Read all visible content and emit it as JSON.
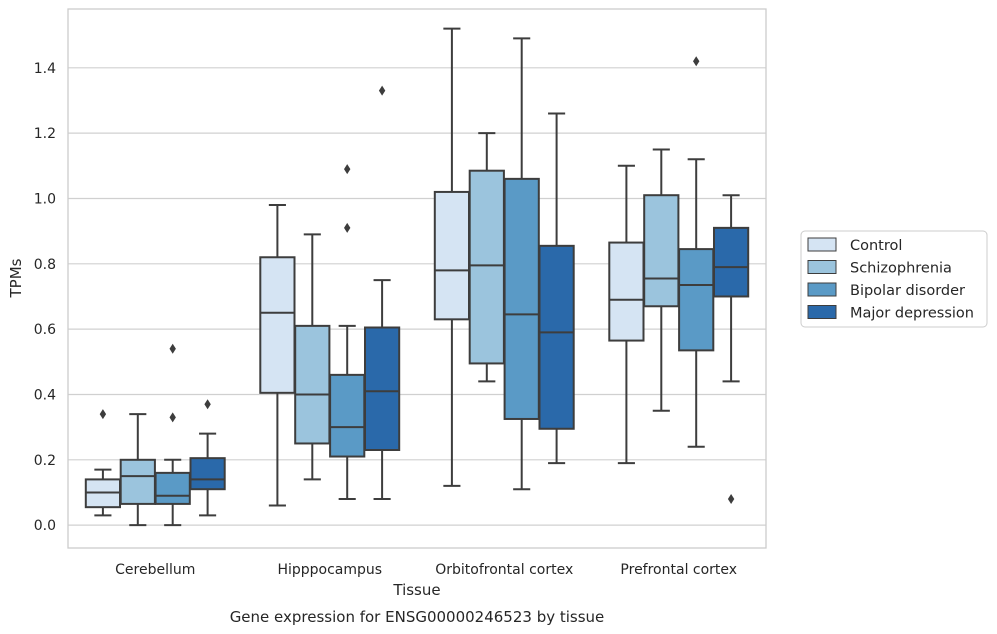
{
  "chart_data": {
    "type": "boxplot",
    "xlabel": "Tissue",
    "ylabel": "TPMs",
    "caption": "Gene expression for ENSG00000246523 by tissue",
    "ylim": [
      -0.07,
      1.58
    ],
    "yticks": [
      "0.0",
      "0.2",
      "0.4",
      "0.6",
      "0.8",
      "1.0",
      "1.2",
      "1.4"
    ],
    "ytick_values": [
      0.0,
      0.2,
      0.4,
      0.6,
      0.8,
      1.0,
      1.2,
      1.4
    ],
    "grid": "horizontal",
    "legend_position": "right",
    "categories": [
      "Cerebellum",
      "Hipppocampus",
      "Orbitofrontal cortex",
      "Prefrontal cortex"
    ],
    "series": [
      {
        "name": "Control",
        "color": "#d5e4f3",
        "boxes": [
          {
            "whislo": 0.03,
            "q1": 0.055,
            "med": 0.1,
            "q3": 0.14,
            "whishi": 0.17,
            "fliers": [
              0.34
            ]
          },
          {
            "whislo": 0.06,
            "q1": 0.405,
            "med": 0.65,
            "q3": 0.82,
            "whishi": 0.98,
            "fliers": []
          },
          {
            "whislo": 0.12,
            "q1": 0.63,
            "med": 0.78,
            "q3": 1.02,
            "whishi": 1.52,
            "fliers": []
          },
          {
            "whislo": 0.19,
            "q1": 0.565,
            "med": 0.69,
            "q3": 0.865,
            "whishi": 1.1,
            "fliers": []
          }
        ]
      },
      {
        "name": "Schizophrenia",
        "color": "#9bc4dd",
        "boxes": [
          {
            "whislo": 0.0,
            "q1": 0.065,
            "med": 0.15,
            "q3": 0.2,
            "whishi": 0.34,
            "fliers": []
          },
          {
            "whislo": 0.14,
            "q1": 0.25,
            "med": 0.4,
            "q3": 0.61,
            "whishi": 0.89,
            "fliers": []
          },
          {
            "whislo": 0.44,
            "q1": 0.495,
            "med": 0.795,
            "q3": 1.085,
            "whishi": 1.2,
            "fliers": []
          },
          {
            "whislo": 0.35,
            "q1": 0.67,
            "med": 0.755,
            "q3": 1.01,
            "whishi": 1.15,
            "fliers": []
          }
        ]
      },
      {
        "name": "Bipolar disorder",
        "color": "#5a9ac6",
        "boxes": [
          {
            "whislo": 0.0,
            "q1": 0.065,
            "med": 0.09,
            "q3": 0.16,
            "whishi": 0.2,
            "fliers": [
              0.33,
              0.54
            ]
          },
          {
            "whislo": 0.08,
            "q1": 0.21,
            "med": 0.3,
            "q3": 0.46,
            "whishi": 0.61,
            "fliers": [
              0.91,
              1.09
            ]
          },
          {
            "whislo": 0.11,
            "q1": 0.325,
            "med": 0.645,
            "q3": 1.06,
            "whishi": 1.49,
            "fliers": []
          },
          {
            "whislo": 0.24,
            "q1": 0.535,
            "med": 0.735,
            "q3": 0.845,
            "whishi": 1.12,
            "fliers": [
              1.42
            ]
          }
        ]
      },
      {
        "name": "Major depression",
        "color": "#2a69aa",
        "boxes": [
          {
            "whislo": 0.03,
            "q1": 0.11,
            "med": 0.14,
            "q3": 0.205,
            "whishi": 0.28,
            "fliers": [
              0.37
            ]
          },
          {
            "whislo": 0.08,
            "q1": 0.23,
            "med": 0.41,
            "q3": 0.605,
            "whishi": 0.75,
            "fliers": [
              1.33
            ]
          },
          {
            "whislo": 0.19,
            "q1": 0.295,
            "med": 0.59,
            "q3": 0.855,
            "whishi": 1.26,
            "fliers": []
          },
          {
            "whislo": 0.44,
            "q1": 0.7,
            "med": 0.79,
            "q3": 0.91,
            "whishi": 1.01,
            "fliers": [
              0.08
            ]
          }
        ]
      }
    ]
  }
}
